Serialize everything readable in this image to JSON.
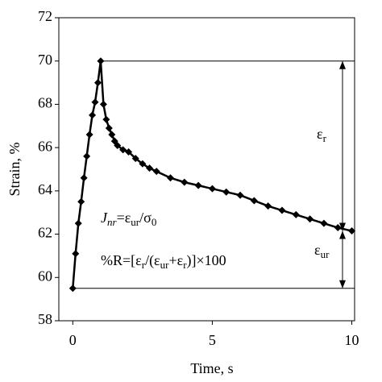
{
  "chart_data": {
    "type": "line",
    "x_label": "Time, s",
    "y_label": "Strain, %",
    "x": [
      0,
      0.1,
      0.2,
      0.3,
      0.4,
      0.5,
      0.6,
      0.7,
      0.8,
      0.9,
      1.0,
      1.1,
      1.2,
      1.3,
      1.4,
      1.5,
      1.6,
      1.8,
      2.0,
      2.25,
      2.5,
      2.75,
      3.0,
      3.5,
      4.0,
      4.5,
      5.0,
      5.5,
      6.0,
      6.5,
      7.0,
      7.5,
      8.0,
      8.5,
      9.0,
      9.5,
      10.0
    ],
    "series": [
      {
        "name": "Strain",
        "color": "#000000",
        "values": [
          59.5,
          61.1,
          62.5,
          63.5,
          64.6,
          65.6,
          66.6,
          67.5,
          68.1,
          69.0,
          70.0,
          68.0,
          67.3,
          66.9,
          66.6,
          66.3,
          66.1,
          65.9,
          65.8,
          65.5,
          65.25,
          65.05,
          64.9,
          64.6,
          64.4,
          64.25,
          64.1,
          63.95,
          63.8,
          63.55,
          63.3,
          63.1,
          62.9,
          62.7,
          62.5,
          62.3,
          62.15
        ]
      }
    ],
    "xlim": [
      -0.5,
      10.1
    ],
    "ylim": [
      58,
      72
    ],
    "xticks": [
      0,
      5,
      10
    ],
    "yticks": [
      58,
      60,
      62,
      64,
      66,
      68,
      70,
      72
    ],
    "grid": false,
    "levels": {
      "peak": 70,
      "final": 62.15,
      "initial": 59.5
    },
    "annotations": [
      [
        {
          "t": "J",
          "italic": true
        },
        {
          "t": "nr",
          "italic": true,
          "sub": true
        },
        {
          "t": "=ε"
        },
        {
          "t": "ur",
          "sub": true
        },
        {
          "t": "/σ"
        },
        {
          "t": "0",
          "sub": true
        }
      ],
      [
        {
          "t": "%R=[ε"
        },
        {
          "t": "r",
          "sub": true
        },
        {
          "t": "/(ε"
        },
        {
          "t": "ur",
          "sub": true
        },
        {
          "t": "+ε"
        },
        {
          "t": "r",
          "sub": true
        },
        {
          "t": ")]×100"
        }
      ],
      [
        {
          "t": "ε"
        },
        {
          "t": "r",
          "sub": true
        }
      ],
      [
        {
          "t": "ε"
        },
        {
          "t": "ur",
          "sub": true
        }
      ]
    ]
  }
}
